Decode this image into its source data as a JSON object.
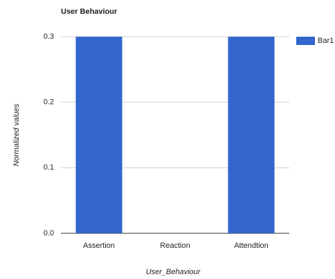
{
  "chart_data": {
    "type": "bar",
    "title": "User Behaviour",
    "x_label": "User_Behaviour",
    "y_label": "Normalized values",
    "categories": [
      "Assertion",
      "Reaction",
      "Attendtion"
    ],
    "series": [
      {
        "name": "Bar1",
        "color": "#3366cc",
        "values": [
          0.3,
          0,
          0.3
        ]
      }
    ],
    "ylim": [
      0,
      0.3
    ],
    "yticks": [
      {
        "value": 0,
        "label": "0.0"
      },
      0.1,
      0.2,
      0.3
    ],
    "grid": true,
    "legend": "right"
  }
}
